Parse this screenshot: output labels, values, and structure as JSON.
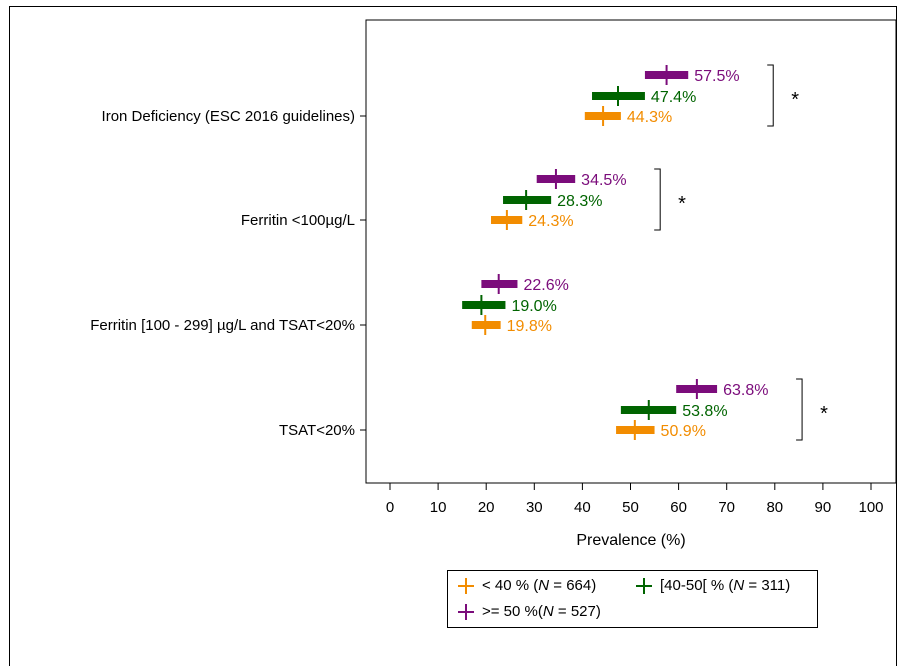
{
  "chart_data": {
    "type": "forest",
    "xlabel": "Prevalence (%)",
    "xlim": [
      -5,
      105
    ],
    "xticks": [
      0,
      10,
      20,
      30,
      40,
      50,
      60,
      70,
      80,
      90,
      100
    ],
    "grid": false,
    "legend_position": "bottom",
    "categories": [
      "Iron Deficiency (ESC 2016 guidelines)",
      "Ferritin <100µg/L",
      "Ferritin [100 - 299] µg/L and TSAT<20%",
      "TSAT<20%"
    ],
    "series": [
      {
        "name_prefix": "< 40 % (",
        "name_n": "N",
        "name_suffix": " = 664)",
        "color": "#F28C00",
        "values": [
          44.3,
          24.3,
          19.8,
          50.9
        ],
        "ci_low": [
          40.5,
          21.0,
          17.0,
          47.0
        ],
        "ci_high": [
          48.0,
          27.5,
          23.0,
          55.0
        ],
        "labels": [
          "44.3%",
          "24.3%",
          "19.8%",
          "50.9%"
        ]
      },
      {
        "name_prefix": "[40-50[ % (",
        "name_n": "N",
        "name_suffix": " = 311)",
        "color": "#006400",
        "values": [
          47.4,
          28.3,
          19.0,
          53.8
        ],
        "ci_low": [
          42.0,
          23.5,
          15.0,
          48.0
        ],
        "ci_high": [
          53.0,
          33.5,
          24.0,
          59.5
        ],
        "labels": [
          "47.4%",
          "28.3%",
          "19.0%",
          "53.8%"
        ]
      },
      {
        "name_prefix": ">= 50 %(",
        "name_n": "N",
        "name_suffix": " = 527)",
        "color": "#7B0C7B",
        "values": [
          57.5,
          34.5,
          22.6,
          63.8
        ],
        "ci_low": [
          53.0,
          30.5,
          19.0,
          59.5
        ],
        "ci_high": [
          62.0,
          38.5,
          26.5,
          68.0
        ],
        "labels": [
          "57.5%",
          "34.5%",
          "22.6%",
          "63.8%"
        ]
      }
    ],
    "significance": [
      "*",
      "*",
      "",
      "*"
    ]
  }
}
